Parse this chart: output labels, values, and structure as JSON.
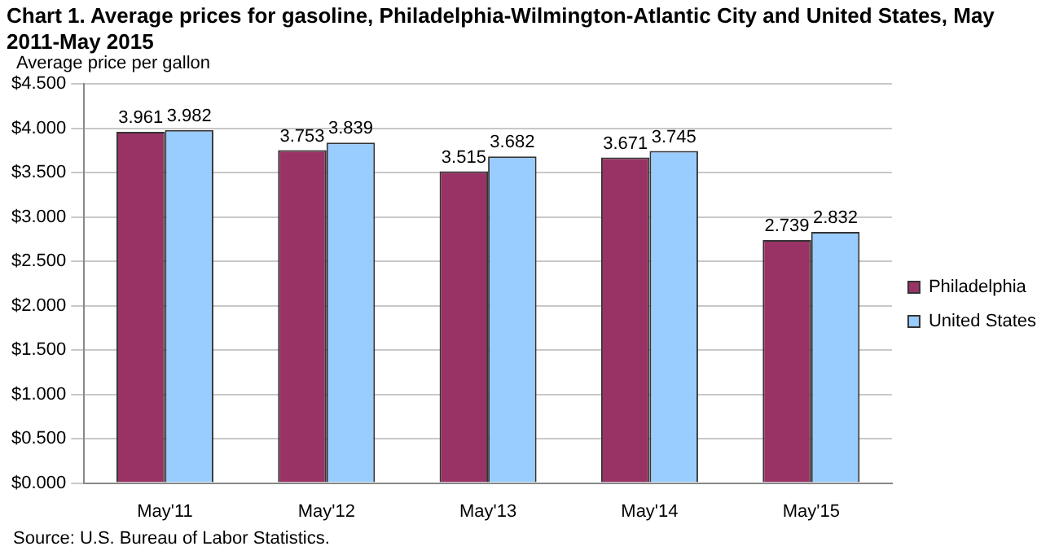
{
  "chart_data": {
    "type": "bar",
    "title": "Chart 1. Average prices for gasoline, Philadelphia-Wilmington-Atlantic City and United States, May 2011-May 2015",
    "ylabel": "Average price per gallon",
    "categories": [
      "May'11",
      "May'12",
      "May'13",
      "May'14",
      "May'15"
    ],
    "series": [
      {
        "name": "Philadelphia",
        "color": "#993366",
        "values": [
          3.961,
          3.753,
          3.515,
          3.671,
          2.739
        ]
      },
      {
        "name": "United States",
        "color": "#99ccff",
        "values": [
          3.982,
          3.839,
          3.682,
          3.745,
          2.832
        ]
      }
    ],
    "ylim": [
      0,
      4.5
    ],
    "yticks": [
      {
        "value": 0,
        "label": "$0.000"
      },
      {
        "value": 0.5,
        "label": "$0.500"
      },
      {
        "value": 1,
        "label": "$1.000"
      },
      {
        "value": 1.5,
        "label": "$1.500"
      },
      {
        "value": 2,
        "label": "$2.000"
      },
      {
        "value": 2.5,
        "label": "$2.500"
      },
      {
        "value": 3,
        "label": "$3.000"
      },
      {
        "value": 3.5,
        "label": "$3.500"
      },
      {
        "value": 4,
        "label": "$4.000"
      },
      {
        "value": 4.5,
        "label": "$4.500"
      }
    ],
    "grid": "y",
    "legend": "right",
    "data_labels": true,
    "annotations": [
      "Source: U.S. Bureau of Labor Statistics."
    ]
  }
}
